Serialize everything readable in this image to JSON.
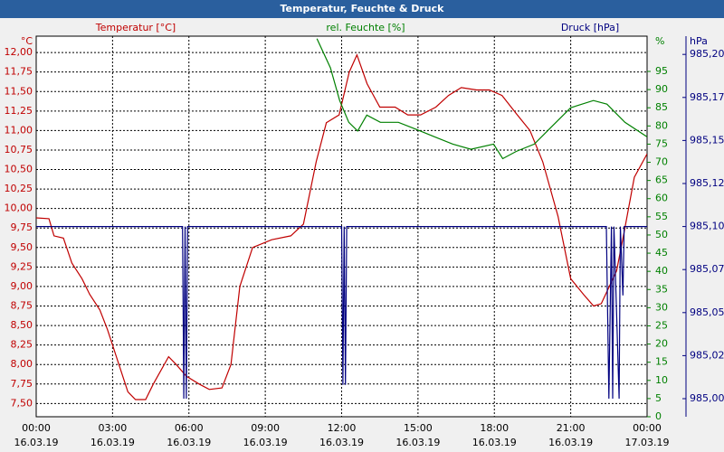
{
  "chart_data": {
    "type": "line",
    "title": "Temperatur, Feuchte & Druck",
    "y_unit": "°C",
    "y2_unit": "%",
    "y3_unit": "hPa",
    "xlim": [
      0,
      24
    ],
    "xticks": [
      {
        "value": 0,
        "label": "00:00"
      },
      {
        "value": 3,
        "label": "03:00"
      },
      {
        "value": 6,
        "label": "06:00"
      },
      {
        "value": 9,
        "label": "09:00"
      },
      {
        "value": 12,
        "label": "12:00"
      },
      {
        "value": 15,
        "label": "15:00"
      },
      {
        "value": 18,
        "label": "18:00"
      },
      {
        "value": 21,
        "label": "21:00"
      },
      {
        "value": 24,
        "label": "00:00"
      }
    ],
    "xtick_dates": [
      "16.03.19",
      "16.03.19",
      "16.03.19",
      "16.03.19",
      "16.03.19",
      "16.03.19",
      "16.03.19",
      "16.03.19",
      "17.03.19"
    ],
    "ylim": [
      7.33,
      12.21
    ],
    "yticks": [
      {
        "value": 7.5,
        "label": "7,50"
      },
      {
        "value": 7.75,
        "label": "7,75"
      },
      {
        "value": 8,
        "label": "8,00"
      },
      {
        "value": 8.25,
        "label": "8,25"
      },
      {
        "value": 8.5,
        "label": "8,50"
      },
      {
        "value": 8.75,
        "label": "8,75"
      },
      {
        "value": 9,
        "label": "9,00"
      },
      {
        "value": 9.25,
        "label": "9,25"
      },
      {
        "value": 9.5,
        "label": "9,50"
      },
      {
        "value": 9.75,
        "label": "9,75"
      },
      {
        "value": 10,
        "label": "10,00"
      },
      {
        "value": 10.25,
        "label": "10,25"
      },
      {
        "value": 10.5,
        "label": "10,50"
      },
      {
        "value": 10.75,
        "label": "10,75"
      },
      {
        "value": 11,
        "label": "11,00"
      },
      {
        "value": 11.25,
        "label": "11,25"
      },
      {
        "value": 11.5,
        "label": "11,50"
      },
      {
        "value": 11.75,
        "label": "11,75"
      },
      {
        "value": 12,
        "label": "12,00"
      }
    ],
    "y2lim": [
      0,
      104.7
    ],
    "y2ticks": [
      0,
      5,
      10,
      15,
      20,
      25,
      30,
      35,
      40,
      45,
      50,
      55,
      60,
      65,
      70,
      75,
      80,
      85,
      90,
      95
    ],
    "y3lim": [
      984.9895,
      985.2106
    ],
    "y3ticks": [
      {
        "value": 985,
        "label": "985,00"
      },
      {
        "value": 985.025,
        "label": "985,02"
      },
      {
        "value": 985.05,
        "label": "985,05"
      },
      {
        "value": 985.075,
        "label": "985,07"
      },
      {
        "value": 985.1,
        "label": "985,10"
      },
      {
        "value": 985.125,
        "label": "985,12"
      },
      {
        "value": 985.15,
        "label": "985,15"
      },
      {
        "value": 985.175,
        "label": "985,17"
      },
      {
        "value": 985.2,
        "label": "985,20"
      }
    ],
    "grid": true,
    "series": [
      {
        "name": "Temperatur [°C]",
        "color": "#c00000",
        "axis": "y",
        "x": [
          0,
          0.5,
          0.7,
          1.07,
          1.4,
          1.8,
          2.1,
          2.5,
          2.8,
          3.2,
          3.6,
          3.9,
          4.3,
          4.6,
          5.2,
          5.5,
          5.9,
          6.4,
          6.8,
          7.3,
          7.65,
          8.0,
          8.5,
          9.25,
          10,
          10.5,
          11,
          11.4,
          11.9,
          12.3,
          12.6,
          13,
          13.5,
          14.1,
          14.6,
          15.1,
          15.7,
          16.2,
          16.7,
          17.3,
          17.8,
          18.3,
          18.9,
          19.4,
          19.9,
          20.5,
          21,
          21.5,
          21.9,
          22.2,
          22.8,
          23.1,
          23.5,
          24
        ],
        "values": [
          9.88,
          9.87,
          9.65,
          9.62,
          9.3,
          9.1,
          8.9,
          8.7,
          8.45,
          8.05,
          7.65,
          7.55,
          7.55,
          7.75,
          8.1,
          8.0,
          7.85,
          7.75,
          7.68,
          7.7,
          8.0,
          9.0,
          9.5,
          9.6,
          9.65,
          9.8,
          10.6,
          11.1,
          11.2,
          11.75,
          11.97,
          11.6,
          11.3,
          11.3,
          11.2,
          11.2,
          11.3,
          11.45,
          11.55,
          11.52,
          11.52,
          11.45,
          11.2,
          11.0,
          10.6,
          9.9,
          9.1,
          8.9,
          8.75,
          8.78,
          9.2,
          9.7,
          10.4,
          10.7
        ]
      },
      {
        "name": "rel. Feuchte [%]",
        "color": "#008000",
        "axis": "y2",
        "x": [
          11.03,
          11.56,
          11.92,
          12.28,
          12.63,
          12.99,
          13.52,
          14.23,
          14.95,
          15.66,
          16.37,
          17.08,
          17.97,
          18.33,
          18.86,
          19.57,
          20.28,
          21,
          21.89,
          22.42,
          23.13,
          24
        ],
        "values": [
          104,
          96,
          87,
          81,
          78.6,
          83,
          81,
          81,
          79,
          77,
          75,
          73.6,
          75,
          71,
          73,
          75,
          80,
          85,
          87,
          86,
          81,
          77
        ]
      },
      {
        "name": "Druck [hPa]",
        "color": "#000080",
        "axis": "y3",
        "x": [
          0,
          5.75,
          5.8,
          5.85,
          5.9,
          5.95,
          6.0,
          12.0,
          12.05,
          12.1,
          12.15,
          12.2,
          22.4,
          22.5,
          22.6,
          22.65,
          22.7,
          22.8,
          22.9,
          22.95,
          23.05,
          23.1,
          24
        ],
        "values": [
          985.1,
          985.1,
          985.0,
          985.1,
          985.0,
          985.1,
          985.1,
          985.1,
          985.008,
          985.1,
          985.008,
          985.1,
          985.1,
          985.0,
          985.1,
          985.0,
          985.1,
          985.05,
          985.0,
          985.1,
          985.06,
          985.1,
          985.1
        ]
      }
    ]
  }
}
